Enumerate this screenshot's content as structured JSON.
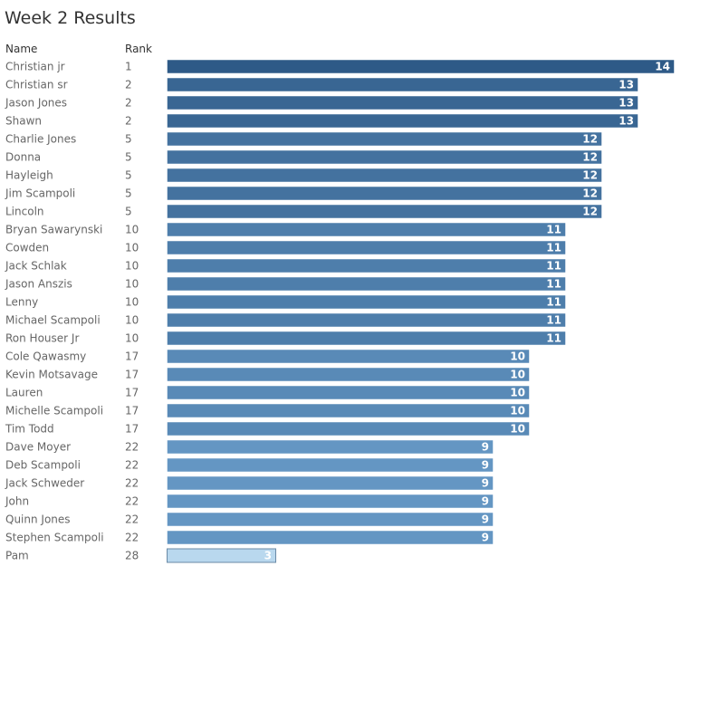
{
  "title": "Week 2 Results",
  "headers": {
    "name": "Name",
    "rank": "Rank"
  },
  "colors": {
    "dark": "#2e5a87",
    "light": "#6496c3",
    "lowest_fill": "#b9d8ee",
    "lowest_border": "#6a8aa6",
    "bar_border": "#ffffff"
  },
  "chart_data": {
    "type": "bar",
    "orientation": "horizontal",
    "categories": [
      "Christian jr",
      "Christian sr",
      "Jason Jones",
      "Shawn",
      "Charlie Jones",
      "Donna",
      "Hayleigh",
      "Jim Scampoli",
      "Lincoln",
      "Bryan Sawarynski",
      "Cowden",
      "Jack Schlak",
      "Jason Anszis",
      "Lenny",
      "Michael Scampoli",
      "Ron Houser Jr",
      "Cole Qawasmy",
      "Kevin Motsavage",
      "Lauren",
      "Michelle Scampoli",
      "Tim Todd",
      "Dave Moyer",
      "Deb Scampoli",
      "Jack Schweder",
      "John",
      "Quinn Jones",
      "Stephen Scampoli",
      "Pam"
    ],
    "ranks": [
      "1",
      "2",
      "2",
      "2",
      "5",
      "5",
      "5",
      "5",
      "5",
      "10",
      "10",
      "10",
      "10",
      "10",
      "10",
      "10",
      "17",
      "17",
      "17",
      "17",
      "17",
      "22",
      "22",
      "22",
      "22",
      "22",
      "22",
      "28"
    ],
    "values": [
      14,
      13,
      13,
      13,
      12,
      12,
      12,
      12,
      12,
      11,
      11,
      11,
      11,
      11,
      11,
      11,
      10,
      10,
      10,
      10,
      10,
      9,
      9,
      9,
      9,
      9,
      9,
      3
    ],
    "title": "Week 2 Results",
    "xlim": [
      0,
      14
    ]
  }
}
